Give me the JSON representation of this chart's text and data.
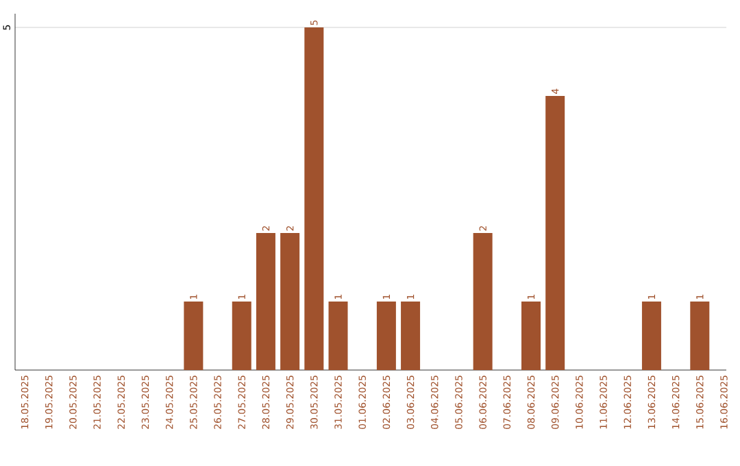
{
  "chart_data": {
    "type": "bar",
    "categories": [
      "18.05.2025",
      "19.05.2025",
      "20.05.2025",
      "21.05.2025",
      "22.05.2025",
      "23.05.2025",
      "24.05.2025",
      "25.05.2025",
      "26.05.2025",
      "27.05.2025",
      "28.05.2025",
      "29.05.2025",
      "30.05.2025",
      "31.05.2025",
      "01.06.2025",
      "02.06.2025",
      "03.06.2025",
      "04.06.2025",
      "05.06.2025",
      "06.06.2025",
      "07.06.2025",
      "08.06.2025",
      "09.06.2025",
      "10.06.2025",
      "11.06.2025",
      "12.06.2025",
      "13.06.2025",
      "14.06.2025",
      "15.06.2025",
      "16.06.2025"
    ],
    "values": [
      0,
      0,
      0,
      0,
      0,
      0,
      0,
      1,
      0,
      1,
      2,
      2,
      5,
      1,
      0,
      1,
      1,
      0,
      0,
      2,
      0,
      1,
      4,
      0,
      0,
      0,
      1,
      0,
      1,
      0
    ],
    "color": "#a0522d",
    "value_labels": [
      null,
      null,
      null,
      null,
      null,
      null,
      null,
      "1",
      null,
      "1",
      "2",
      "2",
      "5",
      "1",
      null,
      "1",
      "1",
      null,
      null,
      "2",
      null,
      "1",
      "4",
      null,
      null,
      null,
      "1",
      null,
      "1",
      null
    ],
    "ylim": [
      0,
      5.2
    ],
    "yticks": [
      5
    ],
    "grid": "y"
  }
}
